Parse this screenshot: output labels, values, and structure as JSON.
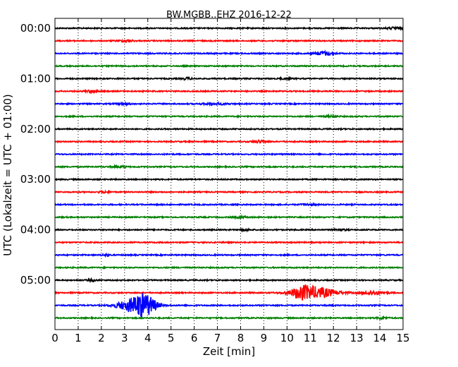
{
  "chart_data": {
    "type": "line",
    "title": "BW.MGBB..EHZ 2016-12-22",
    "xlabel": "Zeit  [min]",
    "ylabel": "UTC (Lokalzeit = UTC + 01:00)",
    "xlim": [
      0,
      15
    ],
    "x_ticks": [
      "0",
      "1",
      "2",
      "3",
      "4",
      "5",
      "6",
      "7",
      "8",
      "9",
      "10",
      "11",
      "12",
      "13",
      "14",
      "15"
    ],
    "y_tick_labels": [
      "00:00",
      "01:00",
      "02:00",
      "03:00",
      "04:00",
      "05:00"
    ],
    "grid": {
      "x": true,
      "style": "dotted"
    },
    "line_colors": [
      "#000000",
      "#ff0000",
      "#0000ff",
      "#008000"
    ],
    "traces": [
      {
        "start": "00:00",
        "events": [
          {
            "t": 14.7,
            "amp": 0.15,
            "dur": 0.4
          }
        ]
      },
      {
        "start": "00:15",
        "events": [
          {
            "t": 3.1,
            "amp": 0.12,
            "dur": 0.3
          }
        ]
      },
      {
        "start": "00:30",
        "events": [
          {
            "t": 11.6,
            "amp": 0.3,
            "dur": 0.4
          }
        ]
      },
      {
        "start": "00:45",
        "events": []
      },
      {
        "start": "01:00",
        "events": [
          {
            "t": 5.7,
            "amp": 0.15,
            "dur": 0.2
          },
          {
            "t": 9.9,
            "amp": 0.1,
            "dur": 0.2
          }
        ]
      },
      {
        "start": "01:15",
        "events": [
          {
            "t": 1.6,
            "amp": 0.15,
            "dur": 0.3
          }
        ]
      },
      {
        "start": "01:30",
        "events": [
          {
            "t": 3.0,
            "amp": 0.12,
            "dur": 0.3
          },
          {
            "t": 6.9,
            "amp": 0.12,
            "dur": 0.6
          }
        ]
      },
      {
        "start": "01:45",
        "events": [
          {
            "t": 11.9,
            "amp": 0.1,
            "dur": 0.3
          }
        ]
      },
      {
        "start": "02:00",
        "events": []
      },
      {
        "start": "02:15",
        "events": [
          {
            "t": 8.8,
            "amp": 0.2,
            "dur": 0.3
          }
        ]
      },
      {
        "start": "02:30",
        "events": []
      },
      {
        "start": "02:45",
        "events": [
          {
            "t": 2.8,
            "amp": 0.12,
            "dur": 0.3
          }
        ]
      },
      {
        "start": "03:00",
        "events": []
      },
      {
        "start": "03:15",
        "events": [
          {
            "t": 2.1,
            "amp": 0.15,
            "dur": 0.2
          }
        ]
      },
      {
        "start": "03:30",
        "events": [
          {
            "t": 10.9,
            "amp": 0.12,
            "dur": 0.3
          }
        ]
      },
      {
        "start": "03:45",
        "events": [
          {
            "t": 8.0,
            "amp": 0.1,
            "dur": 0.3
          }
        ]
      },
      {
        "start": "04:00",
        "events": [
          {
            "t": 8.2,
            "amp": 0.15,
            "dur": 0.2
          },
          {
            "t": 12.3,
            "amp": 0.1,
            "dur": 0.3
          }
        ]
      },
      {
        "start": "04:15",
        "events": []
      },
      {
        "start": "04:30",
        "events": [
          {
            "t": 2.2,
            "amp": 0.15,
            "dur": 0.2
          }
        ]
      },
      {
        "start": "04:45",
        "events": []
      },
      {
        "start": "05:00",
        "events": [
          {
            "t": 1.6,
            "amp": 0.15,
            "dur": 0.2
          }
        ]
      },
      {
        "start": "05:15",
        "events": [
          {
            "t": 10.6,
            "amp": 0.6,
            "dur": 0.4
          },
          {
            "t": 11.2,
            "amp": 0.9,
            "dur": 0.9
          },
          {
            "t": 13.7,
            "amp": 0.3,
            "dur": 0.5
          }
        ]
      },
      {
        "start": "05:30",
        "events": [
          {
            "t": 3.2,
            "amp": 0.7,
            "dur": 0.6
          },
          {
            "t": 3.85,
            "amp": 1.7,
            "dur": 0.5
          }
        ]
      },
      {
        "start": "05:45",
        "events": [
          {
            "t": 14.1,
            "amp": 0.2,
            "dur": 0.2
          }
        ]
      }
    ]
  }
}
